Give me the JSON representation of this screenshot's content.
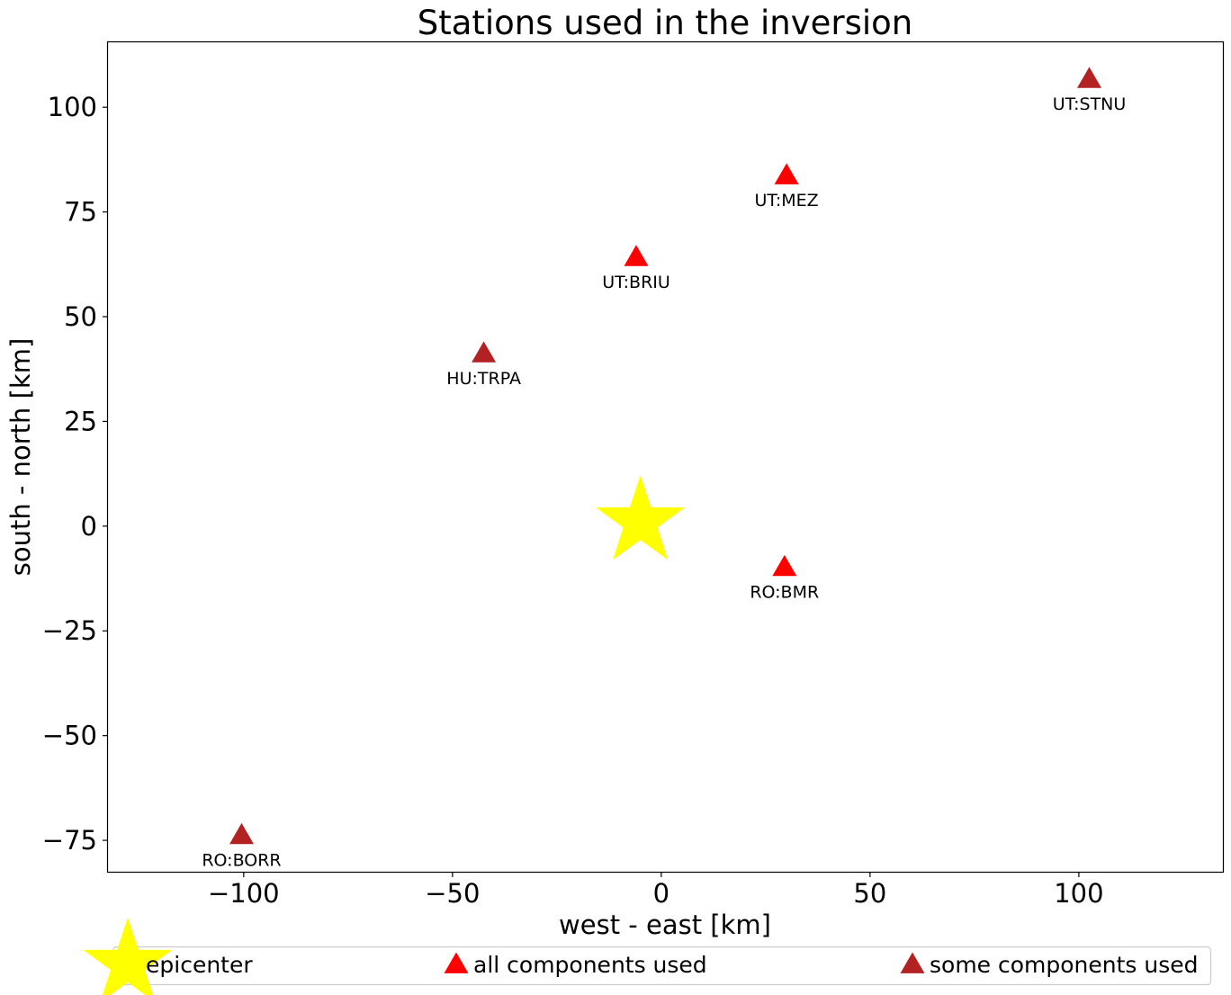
{
  "chart_data": {
    "type": "scatter",
    "title": "Stations used in the inversion",
    "xlabel": "west - east [km]",
    "ylabel": "south - north [km]",
    "xlim": [
      -132.5,
      134.5
    ],
    "ylim": [
      -82.5,
      115.5
    ],
    "xticks": [
      -100,
      -50,
      0,
      50,
      100
    ],
    "xtick_labels": [
      "−100",
      "−50",
      "0",
      "50",
      "100"
    ],
    "yticks": [
      -75,
      -50,
      -25,
      0,
      25,
      50,
      75,
      100
    ],
    "ytick_labels": [
      "−75",
      "−50",
      "−25",
      "0",
      "25",
      "50",
      "75",
      "100"
    ],
    "grid": false,
    "epicenter": {
      "x": -5,
      "y": 1,
      "color": "#ffff00"
    },
    "series": [
      {
        "name": "all components used",
        "color": "#ff0000",
        "points": [
          {
            "label": "UT:MEZ",
            "x": 30,
            "y": 83.5
          },
          {
            "label": "UT:BRIU",
            "x": -6,
            "y": 64
          },
          {
            "label": "RO:BMR",
            "x": 29.5,
            "y": -10
          }
        ]
      },
      {
        "name": "some components used",
        "color": "#b22222",
        "points": [
          {
            "label": "UT:STNU",
            "x": 102.5,
            "y": 106.5
          },
          {
            "label": "HU:TRPA",
            "x": -42.5,
            "y": 41
          },
          {
            "label": "RO:BORR",
            "x": -100.5,
            "y": -74
          }
        ]
      }
    ],
    "legend": {
      "placement": "bottom",
      "entries": [
        "epicenter",
        "all components used",
        "some components used"
      ]
    }
  }
}
